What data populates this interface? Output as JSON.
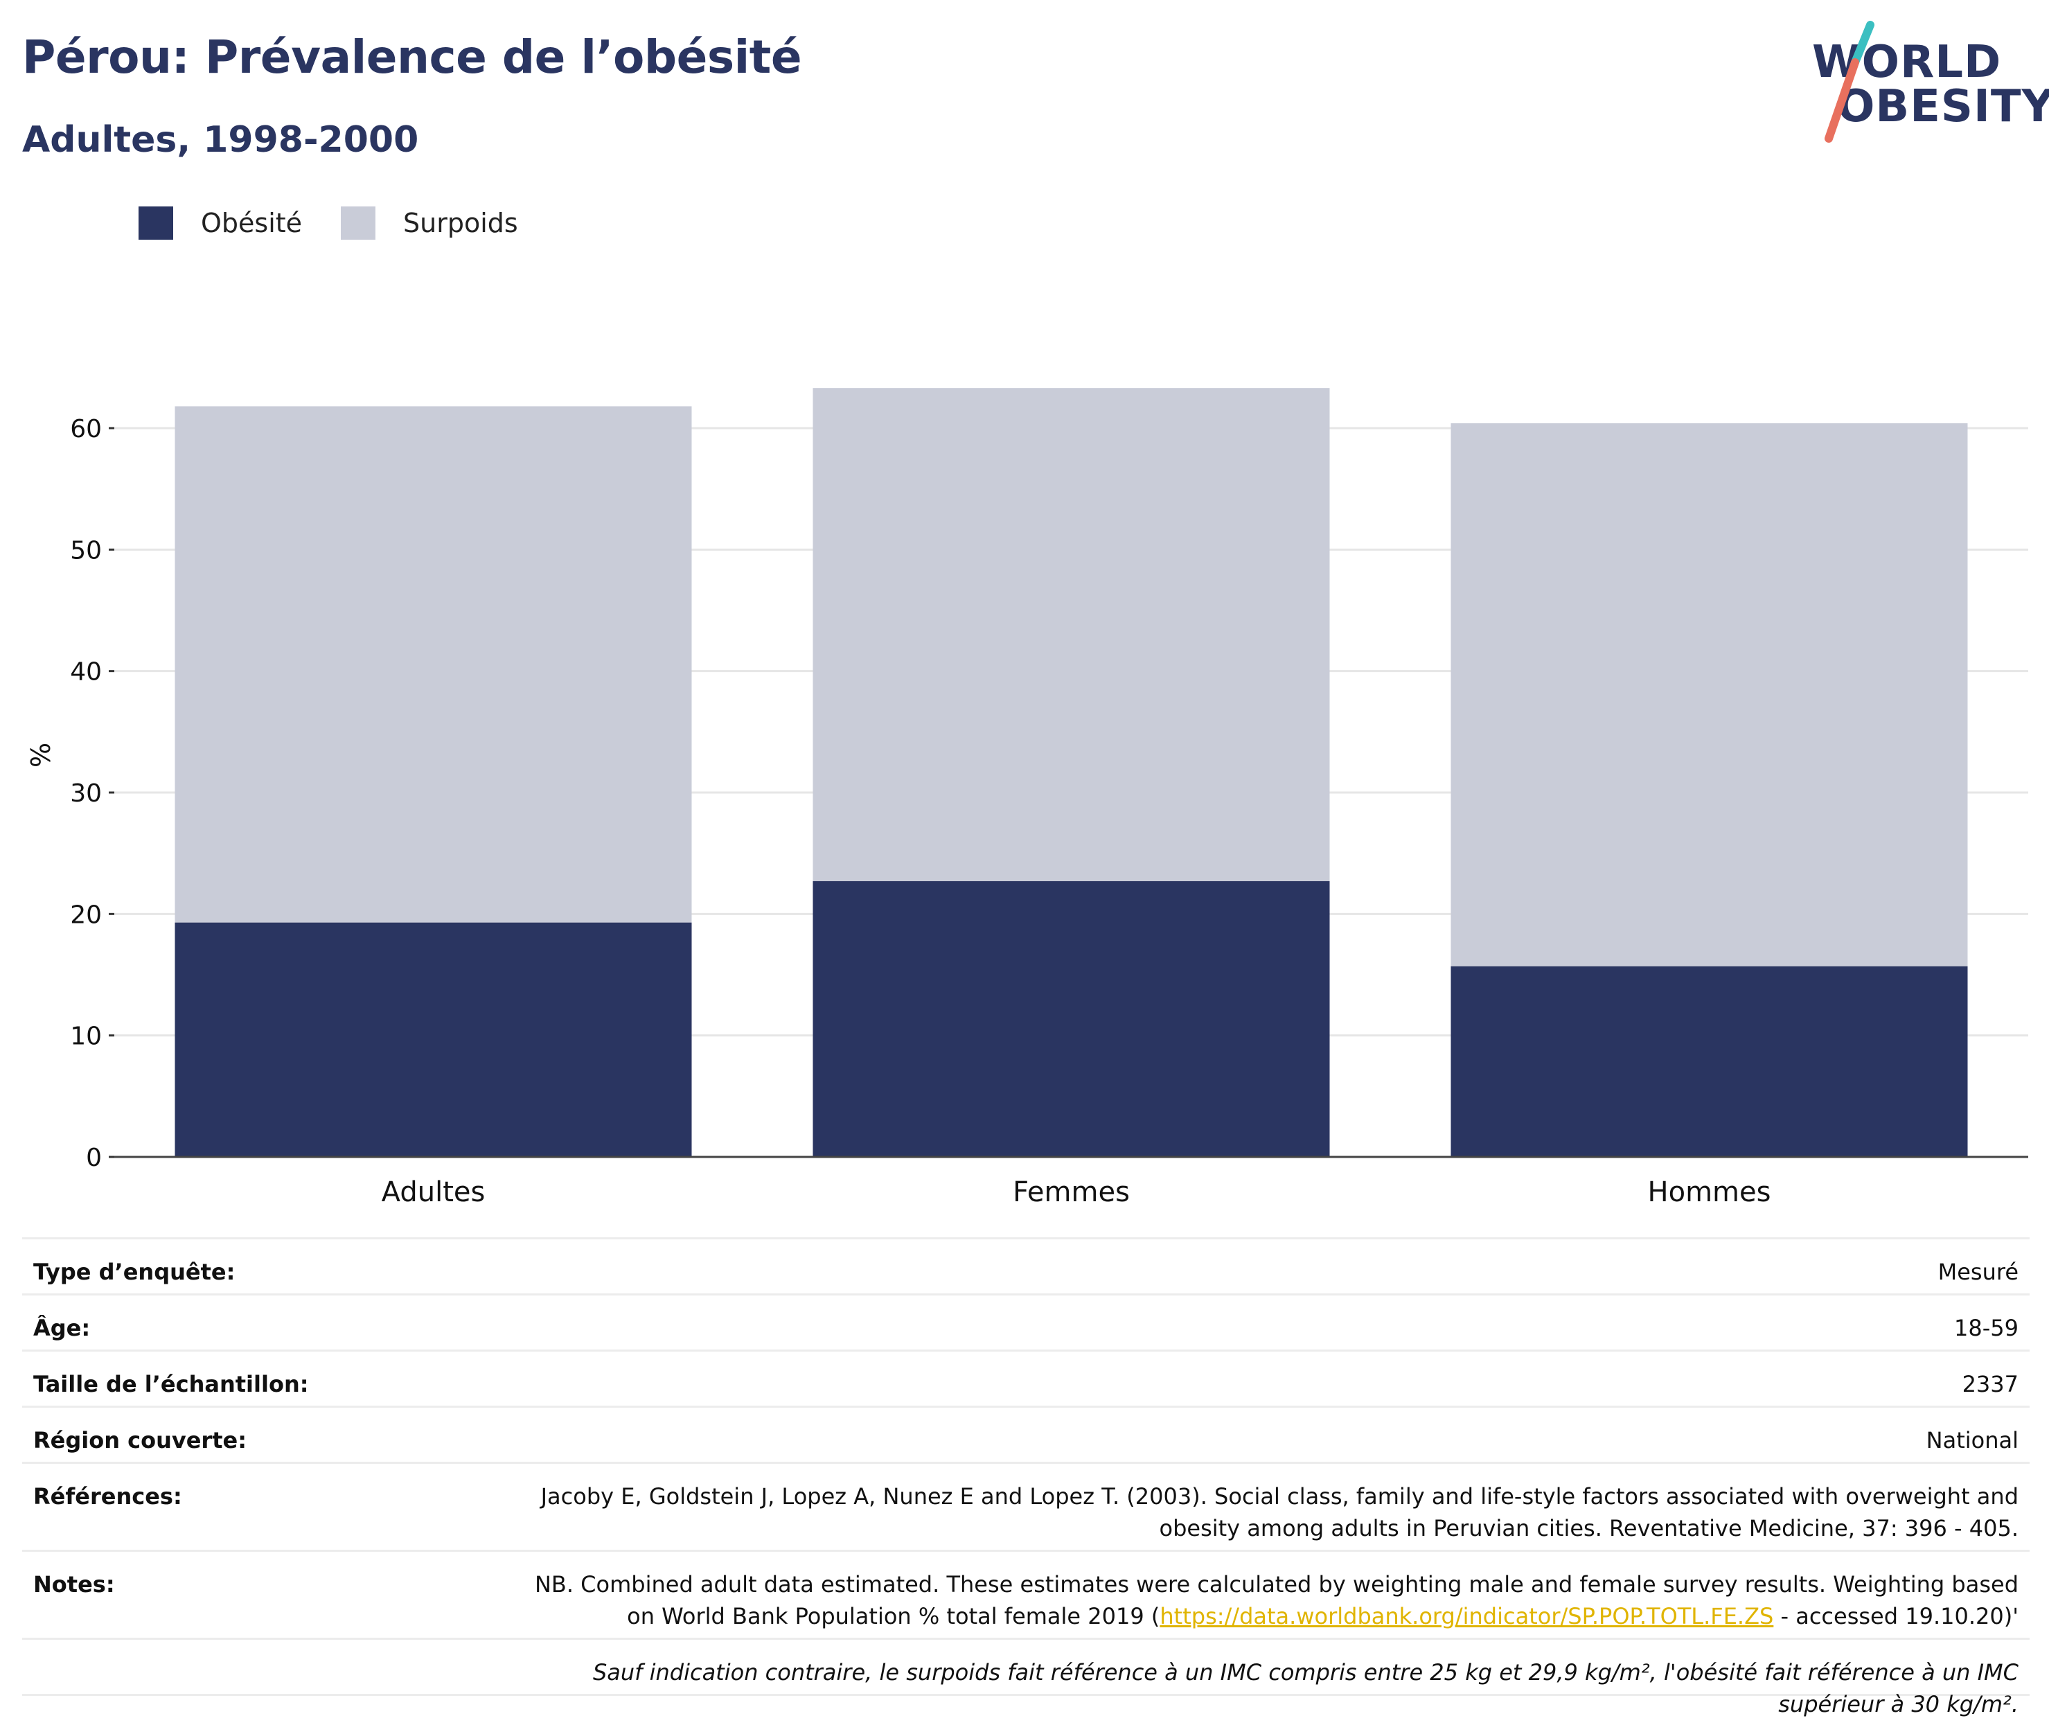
{
  "header": {
    "title": "Pérou: Prévalence de l’obésité",
    "subtitle": "Adultes, 1998-2000",
    "logo_line1": "WORLD",
    "logo_line2": "OBESITY"
  },
  "colors": {
    "obesity": "#2a3561",
    "overweight": "#c9ccd8",
    "brand_navy": "#2a3561",
    "logo_teal": "#3bbfc1",
    "logo_coral": "#e8705e",
    "link": "#e0b400"
  },
  "legend": {
    "items": [
      {
        "label": "Obésité",
        "color": "#2a3561"
      },
      {
        "label": "Surpoids",
        "color": "#c9ccd8"
      }
    ],
    "placement": "top-left"
  },
  "chart_data": {
    "type": "bar",
    "stacked": true,
    "categories": [
      "Adultes",
      "Femmes",
      "Hommes"
    ],
    "series": [
      {
        "name": "Obésité",
        "values": [
          19.3,
          22.7,
          15.7
        ]
      },
      {
        "name": "Surpoids",
        "values": [
          42.5,
          40.6,
          44.7
        ]
      }
    ],
    "ylabel": "%",
    "xlabel": "",
    "ylim": [
      0,
      65
    ],
    "yticks": [
      0,
      10,
      20,
      30,
      40,
      50,
      60
    ],
    "grid": true
  },
  "meta": {
    "survey_type_label": "Type d’enquête:",
    "survey_type_value": "Mesuré",
    "age_label": "Âge:",
    "age_value": "18-59",
    "sample_label": "Taille de l’échantillon:",
    "sample_value": "2337",
    "region_label": "Région couverte:",
    "region_value": "National",
    "references_label": "Références:",
    "references_value": "Jacoby E, Goldstein J, Lopez A, Nunez E and Lopez T. (2003). Social class, family and life-style factors associated with overweight and obesity among adults in Peruvian cities. Reventative Medicine, 37: 396 - 405.",
    "notes_label": "Notes:",
    "notes_before": "NB. Combined adult data estimated. These estimates were calculated by weighting male and female survey results. Weighting based on World Bank Population % total female 2019 (",
    "notes_link": "https://data.worldbank.org/indicator/SP.POP.TOTL.FE.ZS",
    "notes_after": " - accessed 19.10.20)'",
    "footnote": "Sauf indication contraire, le surpoids fait référence à un IMC compris entre 25 kg et 29,9 kg/m², l'obésité fait référence à un IMC supérieur à 30 kg/m²."
  }
}
